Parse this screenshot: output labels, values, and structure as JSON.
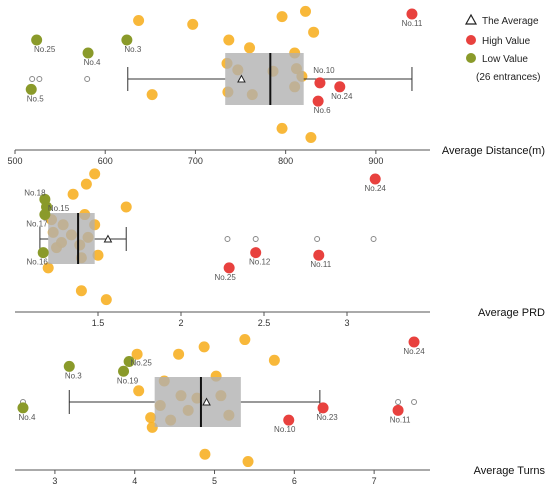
{
  "colors": {
    "high": "#e8413e",
    "low": "#8a9a2a",
    "scatter": "#f7b025",
    "box": "#b0b0b0",
    "outlier": "#888888"
  },
  "legend": {
    "average": "The Average",
    "high": "High Value",
    "low": "Low Value",
    "note": "(26 entrances)"
  },
  "chart_data": [
    {
      "type": "box",
      "xlabel": "Average Distance(m)",
      "xlim": [
        500,
        960
      ],
      "ticks": [
        500,
        600,
        700,
        800,
        900
      ],
      "box": {
        "whisker_low": 625,
        "q1": 733,
        "median": 783,
        "q3": 820,
        "whisker_high": 940,
        "mean": 751
      },
      "outliers": [
        519,
        527,
        580
      ],
      "scatter": [
        {
          "x": 637,
          "y": 0.95
        },
        {
          "x": 697,
          "y": 0.92
        },
        {
          "x": 737,
          "y": 0.8
        },
        {
          "x": 760,
          "y": 0.74
        },
        {
          "x": 796,
          "y": 0.98
        },
        {
          "x": 822,
          "y": 1.02
        },
        {
          "x": 831,
          "y": 0.86
        },
        {
          "x": 810,
          "y": 0.7
        },
        {
          "x": 735,
          "y": 0.62
        },
        {
          "x": 747,
          "y": 0.57
        },
        {
          "x": 786,
          "y": 0.56
        },
        {
          "x": 812,
          "y": 0.58
        },
        {
          "x": 818,
          "y": 0.52
        },
        {
          "x": 810,
          "y": 0.44
        },
        {
          "x": 736,
          "y": 0.4
        },
        {
          "x": 763,
          "y": 0.38
        },
        {
          "x": 652,
          "y": 0.38
        },
        {
          "x": 796,
          "y": 0.12
        },
        {
          "x": 828,
          "y": 0.05
        }
      ],
      "high": [
        {
          "x": 940,
          "y": 1.0,
          "label": "No.11",
          "dx": 0,
          "dy": 12
        },
        {
          "x": 838,
          "y": 0.47,
          "label": "No.10",
          "dx": 4,
          "dy": -10
        },
        {
          "x": 860,
          "y": 0.44,
          "label": "No.24",
          "dx": 2,
          "dy": 12
        },
        {
          "x": 836,
          "y": 0.33,
          "label": "No.6",
          "dx": 4,
          "dy": 12
        }
      ],
      "low": [
        {
          "x": 524,
          "y": 0.8,
          "label": "No.25",
          "dx": 8,
          "dy": 12
        },
        {
          "x": 581,
          "y": 0.7,
          "label": "No.4",
          "dx": 4,
          "dy": 12
        },
        {
          "x": 624,
          "y": 0.8,
          "label": "No.3",
          "dx": 6,
          "dy": 12
        },
        {
          "x": 518,
          "y": 0.42,
          "label": "No.5",
          "dx": 4,
          "dy": 12
        }
      ]
    },
    {
      "type": "box",
      "xlabel": "Average PRD",
      "xlim": [
        1.0,
        3.5
      ],
      "ticks": [
        1.5,
        2,
        2.5,
        3
      ],
      "box": {
        "whisker_low": 1.15,
        "q1": 1.2,
        "median": 1.38,
        "q3": 1.48,
        "whisker_high": 1.67,
        "mean": 1.56
      },
      "outliers": [
        2.28,
        2.45,
        2.82,
        3.16
      ],
      "scatter": [
        {
          "x": 1.48,
          "y": 1.04
        },
        {
          "x": 1.43,
          "y": 0.96
        },
        {
          "x": 1.35,
          "y": 0.88
        },
        {
          "x": 1.67,
          "y": 0.78
        },
        {
          "x": 1.42,
          "y": 0.72
        },
        {
          "x": 1.22,
          "y": 0.68
        },
        {
          "x": 1.29,
          "y": 0.64
        },
        {
          "x": 1.48,
          "y": 0.64
        },
        {
          "x": 1.23,
          "y": 0.58
        },
        {
          "x": 1.34,
          "y": 0.56
        },
        {
          "x": 1.44,
          "y": 0.54
        },
        {
          "x": 1.28,
          "y": 0.5
        },
        {
          "x": 1.39,
          "y": 0.48
        },
        {
          "x": 1.25,
          "y": 0.46
        },
        {
          "x": 1.5,
          "y": 0.4
        },
        {
          "x": 1.4,
          "y": 0.38
        },
        {
          "x": 1.2,
          "y": 0.3
        },
        {
          "x": 1.4,
          "y": 0.12
        },
        {
          "x": 1.55,
          "y": 0.05
        }
      ],
      "high": [
        {
          "x": 3.17,
          "y": 1.0,
          "label": "No.24",
          "dx": 0,
          "dy": 12
        },
        {
          "x": 2.45,
          "y": 0.42,
          "label": "No.12",
          "dx": 4,
          "dy": 12
        },
        {
          "x": 2.83,
          "y": 0.4,
          "label": "No.11",
          "dx": 2,
          "dy": 12
        },
        {
          "x": 2.29,
          "y": 0.3,
          "label": "No.25",
          "dx": -4,
          "dy": 12
        }
      ],
      "low": [
        {
          "x": 1.18,
          "y": 0.84,
          "label": "No.18",
          "dx": -10,
          "dy": -4
        },
        {
          "x": 1.19,
          "y": 0.78,
          "label": "No.15",
          "dx": 12,
          "dy": 4
        },
        {
          "x": 1.18,
          "y": 0.72,
          "label": "No.17",
          "dx": -8,
          "dy": 12
        },
        {
          "x": 1.17,
          "y": 0.42,
          "label": "No.16",
          "dx": -6,
          "dy": 12
        }
      ]
    },
    {
      "type": "box",
      "xlabel": "Average Turns",
      "xlim": [
        2.5,
        7.7
      ],
      "ticks": [
        3,
        4,
        5,
        6,
        7
      ],
      "box": {
        "whisker_low": 3.18,
        "q1": 4.25,
        "median": 4.83,
        "q3": 5.33,
        "whisker_high": 6.32,
        "mean": 4.9
      },
      "outliers": [
        2.6,
        7.3,
        7.5
      ],
      "scatter": [
        {
          "x": 5.38,
          "y": 1.02
        },
        {
          "x": 4.87,
          "y": 0.96
        },
        {
          "x": 4.03,
          "y": 0.9
        },
        {
          "x": 4.55,
          "y": 0.9
        },
        {
          "x": 5.75,
          "y": 0.85
        },
        {
          "x": 5.02,
          "y": 0.72
        },
        {
          "x": 4.37,
          "y": 0.68
        },
        {
          "x": 4.05,
          "y": 0.6
        },
        {
          "x": 4.58,
          "y": 0.56
        },
        {
          "x": 4.78,
          "y": 0.54
        },
        {
          "x": 5.08,
          "y": 0.56
        },
        {
          "x": 4.32,
          "y": 0.48
        },
        {
          "x": 4.67,
          "y": 0.44
        },
        {
          "x": 4.2,
          "y": 0.38
        },
        {
          "x": 5.18,
          "y": 0.4
        },
        {
          "x": 4.45,
          "y": 0.36
        },
        {
          "x": 4.22,
          "y": 0.3
        },
        {
          "x": 4.88,
          "y": 0.08
        },
        {
          "x": 5.42,
          "y": 0.02
        }
      ],
      "high": [
        {
          "x": 7.5,
          "y": 1.0,
          "label": "No.24",
          "dx": 0,
          "dy": 12
        },
        {
          "x": 6.36,
          "y": 0.46,
          "label": "No.23",
          "dx": 4,
          "dy": 12
        },
        {
          "x": 7.3,
          "y": 0.44,
          "label": "No.11",
          "dx": 2,
          "dy": 12
        },
        {
          "x": 5.93,
          "y": 0.36,
          "label": "No.10",
          "dx": -4,
          "dy": 12
        }
      ],
      "low": [
        {
          "x": 3.93,
          "y": 0.84,
          "label": "No.25",
          "dx": 12,
          "dy": 4
        },
        {
          "x": 3.18,
          "y": 0.8,
          "label": "No.3",
          "dx": 4,
          "dy": 12
        },
        {
          "x": 3.86,
          "y": 0.76,
          "label": "No.19",
          "dx": 4,
          "dy": 12
        },
        {
          "x": 2.6,
          "y": 0.46,
          "label": "No.4",
          "dx": 4,
          "dy": 12
        }
      ]
    }
  ]
}
